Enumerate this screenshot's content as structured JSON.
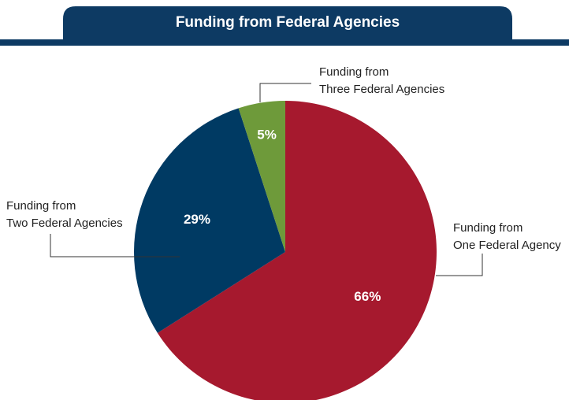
{
  "chart_data": {
    "type": "pie",
    "title": "Funding from Federal Agencies",
    "categories": [
      [
        "Funding from",
        "One Federal Agency"
      ],
      [
        "Funding from",
        "Two Federal Agencies"
      ],
      [
        "Funding from",
        "Three Federal Agencies"
      ]
    ],
    "values": [
      66,
      29,
      5
    ],
    "value_labels": [
      "66%",
      "29%",
      "5%"
    ],
    "colors": [
      "#a6192e",
      "#003a63",
      "#6e9a3a"
    ]
  }
}
